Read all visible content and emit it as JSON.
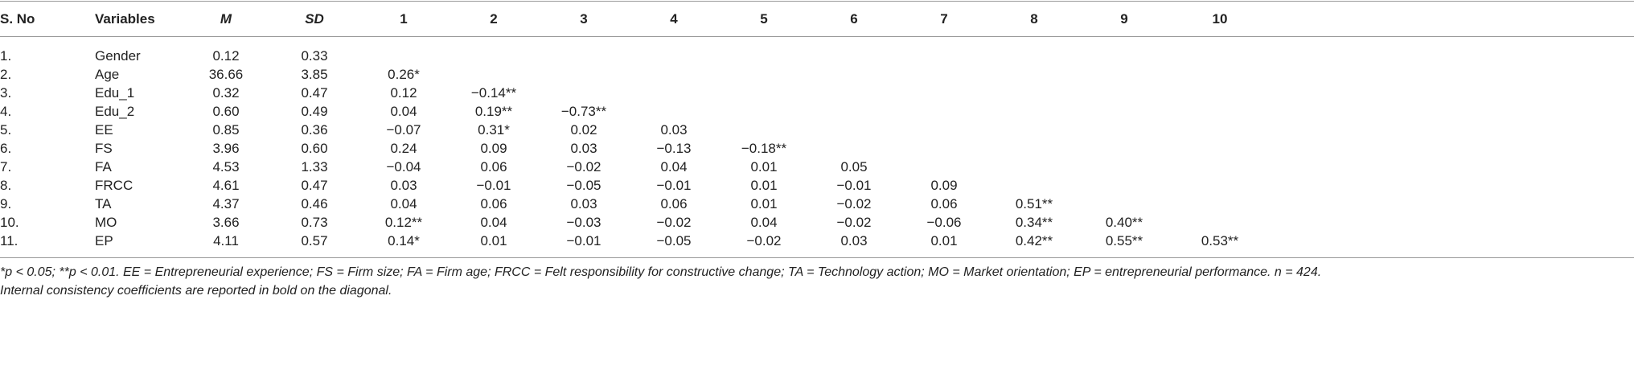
{
  "table": {
    "header": [
      "S. No",
      "Variables",
      "M",
      "SD",
      "1",
      "2",
      "3",
      "4",
      "5",
      "6",
      "7",
      "8",
      "9",
      "10"
    ],
    "rows": [
      [
        "1.",
        "Gender",
        "0.12",
        "0.33"
      ],
      [
        "2.",
        "Age",
        "36.66",
        "3.85",
        "0.26*"
      ],
      [
        "3.",
        "Edu_1",
        "0.32",
        "0.47",
        "0.12",
        "−0.14**"
      ],
      [
        "4.",
        "Edu_2",
        "0.60",
        "0.49",
        "0.04",
        "0.19**",
        "−0.73**"
      ],
      [
        "5.",
        "EE",
        "0.85",
        "0.36",
        "−0.07",
        "0.31*",
        "0.02",
        "0.03"
      ],
      [
        "6.",
        "FS",
        "3.96",
        "0.60",
        "0.24",
        "0.09",
        "0.03",
        "−0.13",
        "−0.18**"
      ],
      [
        "7.",
        "FA",
        "4.53",
        "1.33",
        "−0.04",
        "0.06",
        "−0.02",
        "0.04",
        "0.01",
        "0.05"
      ],
      [
        "8.",
        "FRCC",
        "4.61",
        "0.47",
        "0.03",
        "−0.01",
        "−0.05",
        "−0.01",
        "0.01",
        "−0.01",
        "0.09"
      ],
      [
        "9.",
        "TA",
        "4.37",
        "0.46",
        "0.04",
        "0.06",
        "0.03",
        "0.06",
        "0.01",
        "−0.02",
        "0.06",
        "0.51**"
      ],
      [
        "10.",
        "MO",
        "3.66",
        "0.73",
        "0.12**",
        "0.04",
        "−0.03",
        "−0.02",
        "0.04",
        "−0.02",
        "−0.06",
        "0.34**",
        "0.40**"
      ],
      [
        "11.",
        "EP",
        "4.11",
        "0.57",
        "0.14*",
        "0.01",
        "−0.01",
        "−0.05",
        "−0.02",
        "0.03",
        "0.01",
        "0.42**",
        "0.55**",
        "0.53**"
      ]
    ]
  },
  "footnote": [
    "*p < 0.05;  **p < 0.01.  EE = Entrepreneurial experience; FS = Firm size; FA = Firm age; FRCC = Felt responsibility for constructive change; TA = Technology action; MO = Market orientation; EP = entrepreneurial performance. n = 424.",
    "Internal consistency coefficients are reported in bold on the diagonal."
  ]
}
